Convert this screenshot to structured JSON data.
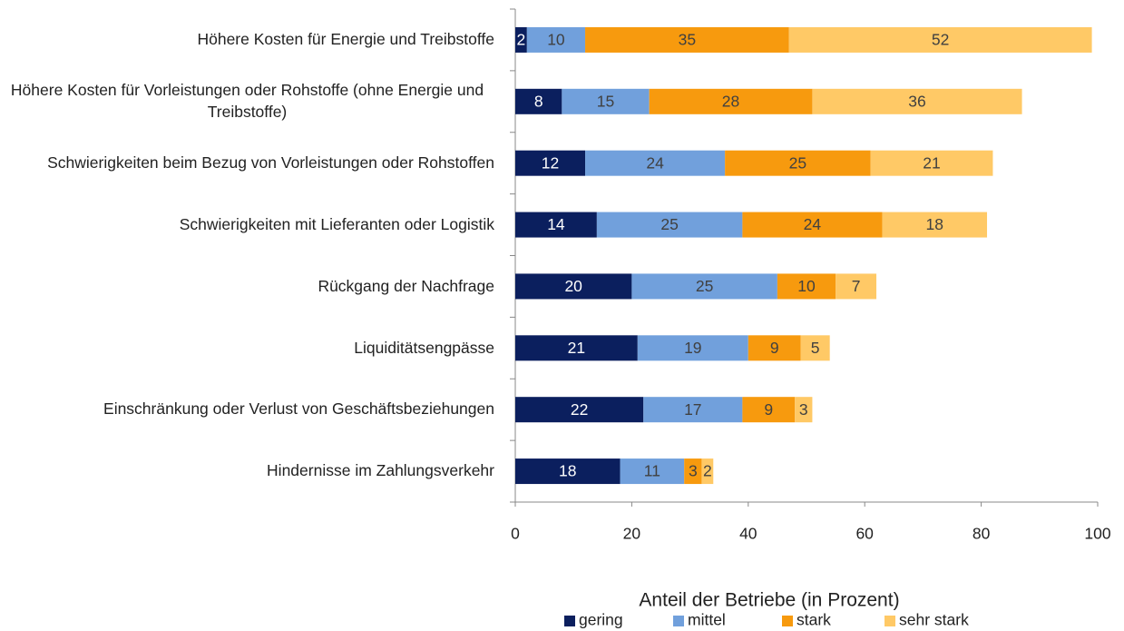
{
  "chart_data": {
    "type": "bar",
    "orientation": "horizontal",
    "stacked": true,
    "xlabel": "Anteil der Betriebe (in Prozent)",
    "categories": [
      "Höhere Kosten für Energie und Treibstoffe",
      "Höhere Kosten für Vorleistungen oder Rohstoffe (ohne Energie und Treibstoffe)",
      "Schwierigkeiten beim Bezug von Vorleistungen oder Rohstoffen",
      "Schwierigkeiten mit Lieferanten oder Logistik",
      "Rückgang der Nachfrage",
      "Liquiditätsengpässe",
      "Einschränkung oder Verlust von Geschäftsbeziehungen",
      "Hindernisse im Zahlungsverkehr"
    ],
    "series": [
      {
        "name": "gering",
        "color": "#0b1f5e",
        "label_color": "#ffffff",
        "values": [
          2,
          8,
          12,
          14,
          20,
          21,
          22,
          18
        ]
      },
      {
        "name": "mittel",
        "color": "#71a0dc",
        "label_color": "#404040",
        "values": [
          10,
          15,
          24,
          25,
          25,
          19,
          17,
          11
        ]
      },
      {
        "name": "stark",
        "color": "#f79a0e",
        "label_color": "#404040",
        "values": [
          35,
          28,
          25,
          24,
          10,
          9,
          9,
          3
        ]
      },
      {
        "name": "sehr stark",
        "color": "#ffc966",
        "label_color": "#404040",
        "values": [
          52,
          36,
          21,
          18,
          7,
          5,
          3,
          2
        ]
      }
    ],
    "xlim": [
      0,
      100
    ],
    "xticks": [
      0,
      20,
      40,
      60,
      80,
      100
    ],
    "legend": "bottom"
  }
}
